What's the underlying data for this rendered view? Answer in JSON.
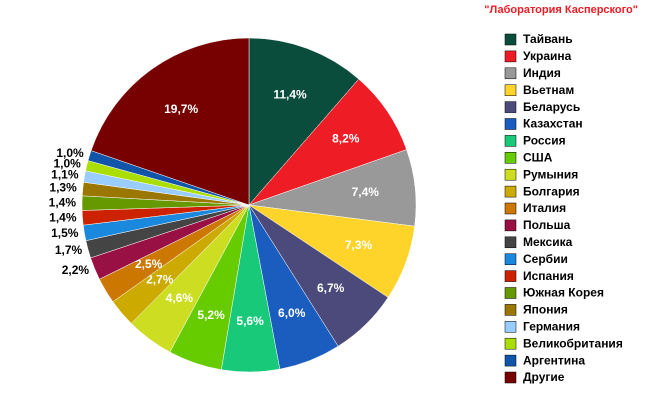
{
  "chart_data": {
    "type": "pie",
    "title": "\"Лаборатория Касперского\"",
    "categories": [
      "Тайвань",
      "Украина",
      "Индия",
      "Вьетнам",
      "Беларусь",
      "Казахстан",
      "Россия",
      "США",
      "Румыния",
      "Болгария",
      "Италия",
      "Польша",
      "Мексика",
      "Сербии",
      "Испания",
      "Южная Корея",
      "Япония",
      "Германия",
      "Великобритания",
      "Аргентина",
      "Другие"
    ],
    "values": [
      11.4,
      8.2,
      7.4,
      7.3,
      6.7,
      6.0,
      5.6,
      5.2,
      4.6,
      2.7,
      2.5,
      2.2,
      1.7,
      1.5,
      1.4,
      1.4,
      1.3,
      1.1,
      1.0,
      1.0,
      19.7
    ],
    "value_labels": [
      "11,4%",
      "8,2%",
      "7,4%",
      "7,3%",
      "6,7%",
      "6,0%",
      "5,6%",
      "5,2%",
      "4,6%",
      "2,7%",
      "2,5%",
      "2,2%",
      "1,7%",
      "1,5%",
      "1,4%",
      "1,4%",
      "1,3%",
      "1,1%",
      "1,0%",
      "1,0%",
      "19,7%"
    ],
    "colors": [
      "#0b4d3c",
      "#ee1c25",
      "#999999",
      "#ffd42a",
      "#4b4a7a",
      "#1a5dbf",
      "#19c97a",
      "#66cc00",
      "#ccdd22",
      "#ccaa00",
      "#cc7700",
      "#991144",
      "#444444",
      "#1a88dd",
      "#cc2200",
      "#669900",
      "#997700",
      "#99ccff",
      "#aadd00",
      "#1155aa",
      "#770000"
    ],
    "legend": "right"
  }
}
